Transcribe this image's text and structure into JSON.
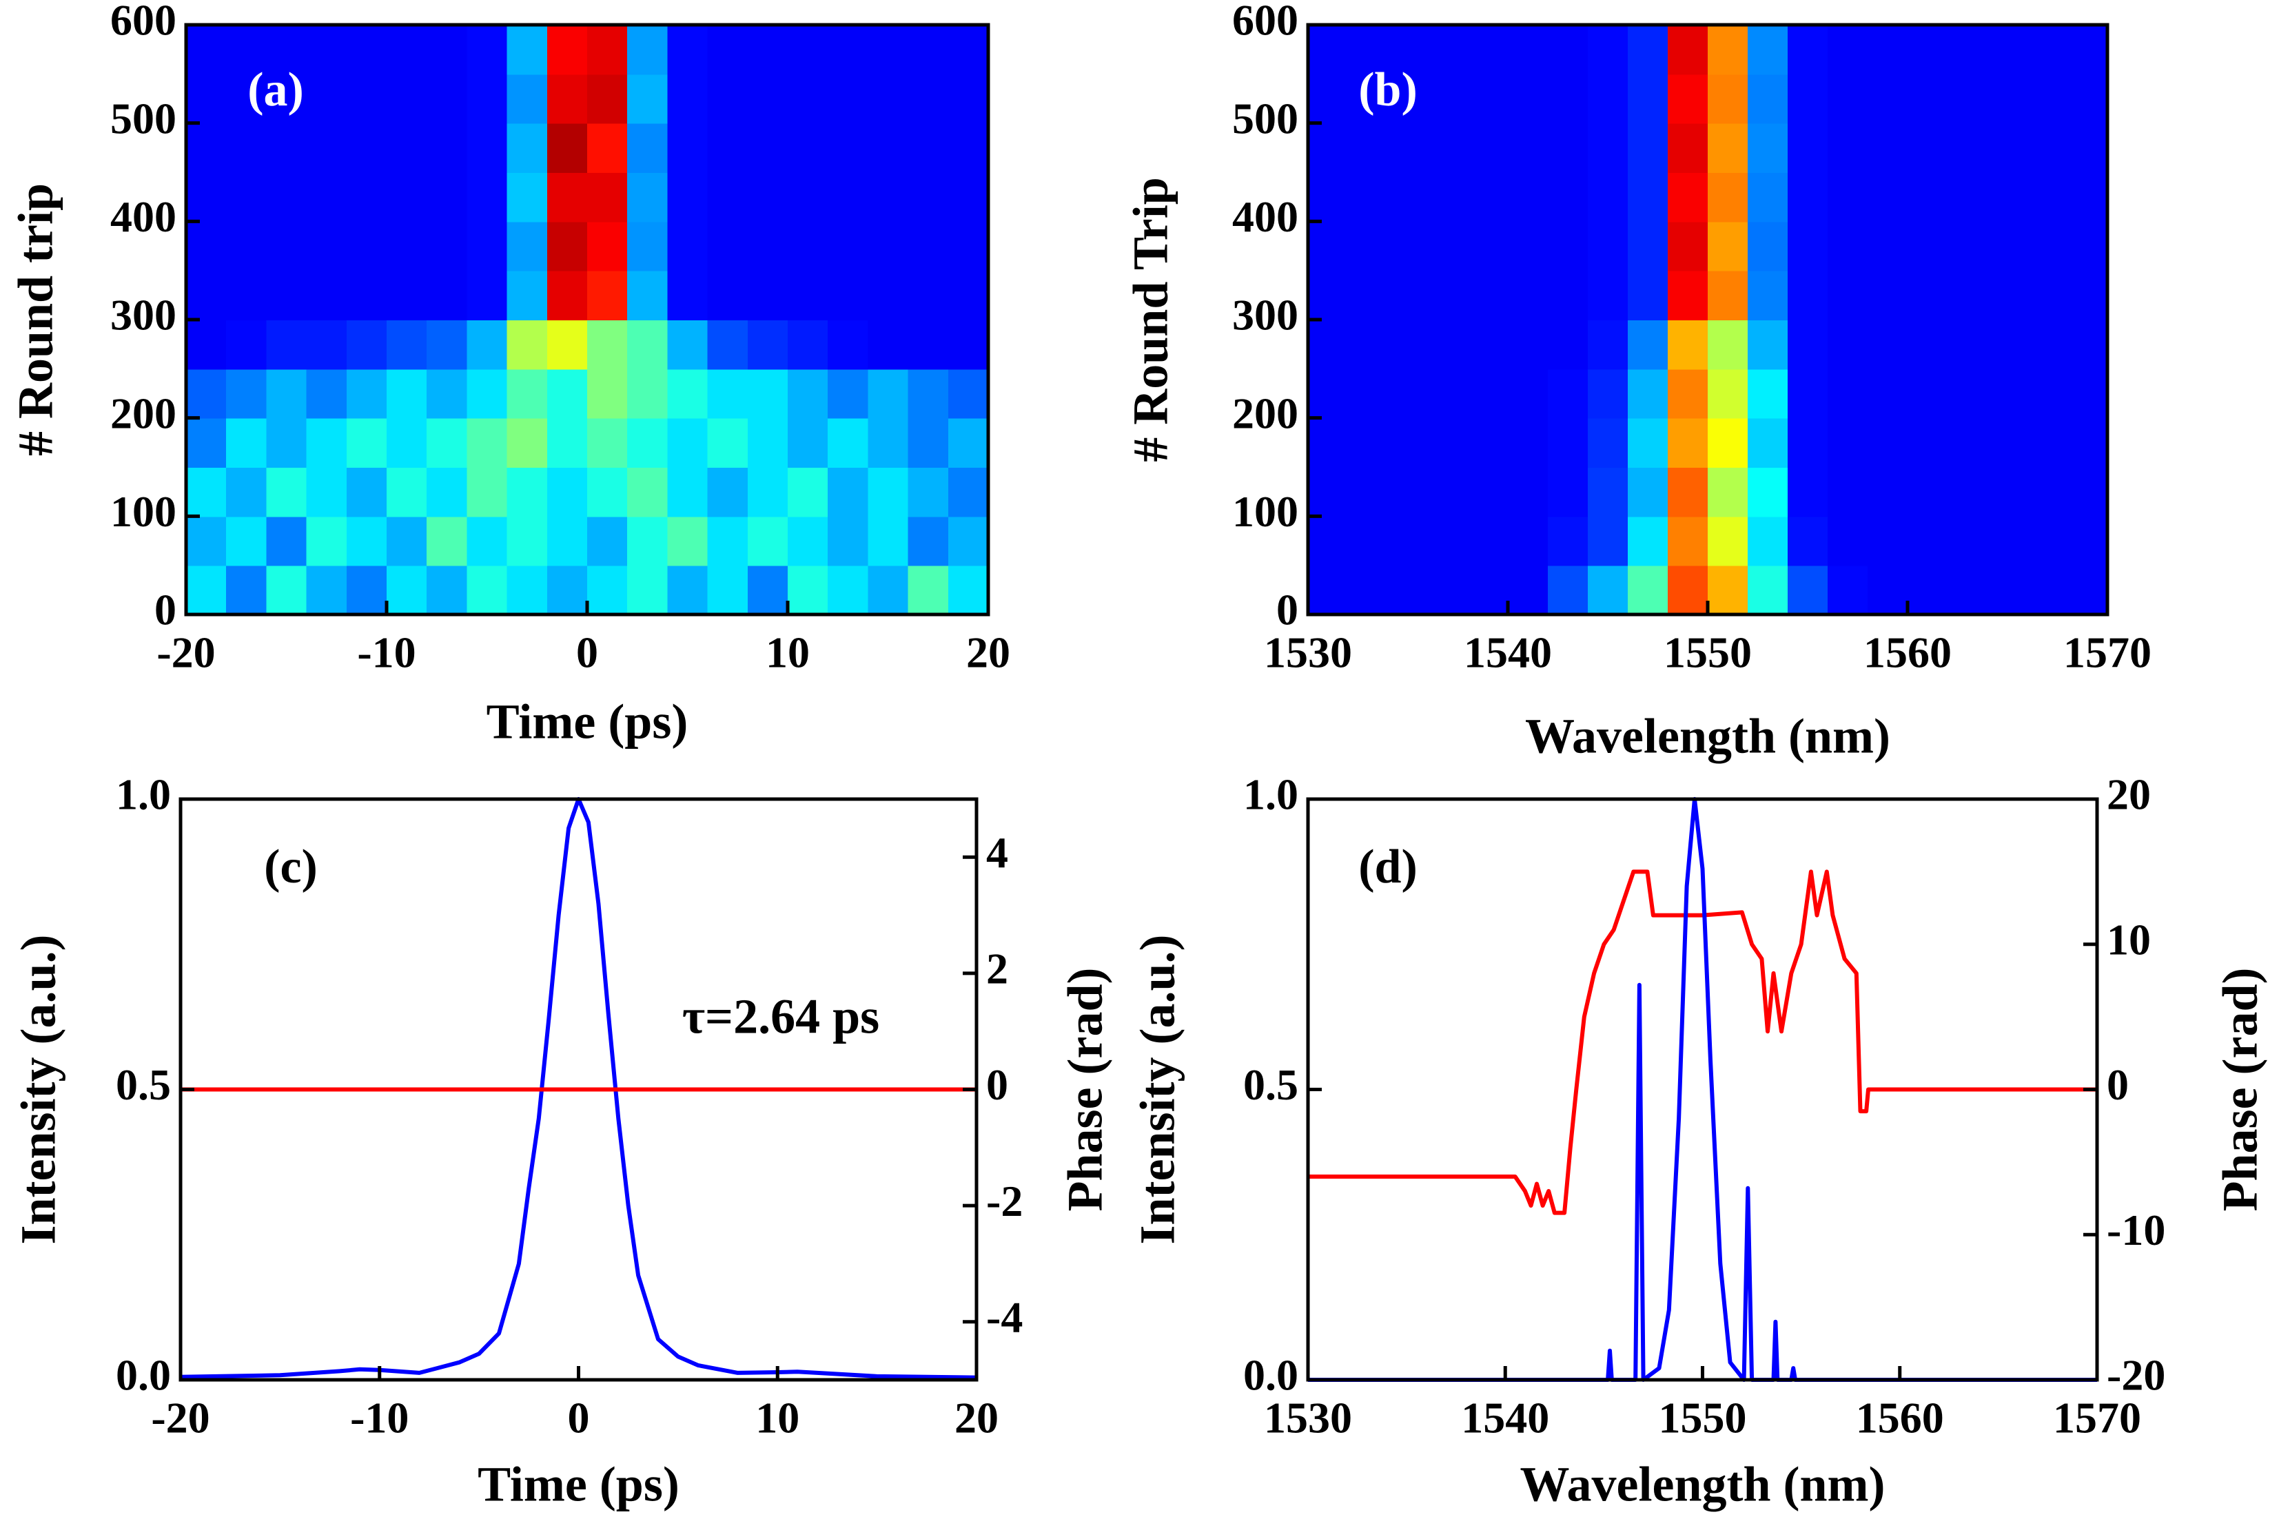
{
  "chart_data": [
    {
      "type": "heatmap",
      "label": "(a)",
      "label_color": "#ffffff",
      "xlabel": "Time (ps)",
      "ylabel": "# Round trip",
      "colormap": "jet",
      "zlim": [
        0,
        1
      ],
      "xlim": [
        -20,
        20
      ],
      "ylim": [
        0,
        600
      ],
      "xticks": [
        -20,
        -10,
        0,
        10,
        20
      ],
      "yticks": [
        0,
        100,
        200,
        300,
        400,
        500,
        600
      ],
      "x": [
        -19,
        -17,
        -15,
        -13,
        -11,
        -9,
        -7,
        -5,
        -3,
        -1,
        1,
        3,
        5,
        7,
        9,
        11,
        13,
        15,
        17,
        19
      ],
      "y": [
        25,
        75,
        125,
        175,
        225,
        275,
        325,
        375,
        425,
        475,
        525,
        575
      ],
      "z": [
        [
          0.35,
          0.25,
          0.4,
          0.3,
          0.25,
          0.35,
          0.3,
          0.4,
          0.35,
          0.3,
          0.35,
          0.4,
          0.3,
          0.35,
          0.25,
          0.4,
          0.35,
          0.3,
          0.45,
          0.35
        ],
        [
          0.3,
          0.35,
          0.25,
          0.4,
          0.35,
          0.3,
          0.45,
          0.35,
          0.4,
          0.35,
          0.3,
          0.4,
          0.45,
          0.35,
          0.4,
          0.35,
          0.3,
          0.35,
          0.25,
          0.3
        ],
        [
          0.35,
          0.3,
          0.4,
          0.35,
          0.3,
          0.4,
          0.35,
          0.45,
          0.4,
          0.35,
          0.4,
          0.45,
          0.35,
          0.3,
          0.35,
          0.4,
          0.3,
          0.35,
          0.3,
          0.25
        ],
        [
          0.25,
          0.35,
          0.3,
          0.35,
          0.4,
          0.35,
          0.4,
          0.45,
          0.5,
          0.4,
          0.45,
          0.4,
          0.35,
          0.4,
          0.35,
          0.3,
          0.35,
          0.3,
          0.25,
          0.3
        ],
        [
          0.22,
          0.25,
          0.3,
          0.25,
          0.3,
          0.35,
          0.3,
          0.35,
          0.45,
          0.4,
          0.5,
          0.45,
          0.4,
          0.35,
          0.35,
          0.3,
          0.25,
          0.3,
          0.25,
          0.22
        ],
        [
          0.12,
          0.13,
          0.15,
          0.15,
          0.17,
          0.2,
          0.22,
          0.3,
          0.55,
          0.6,
          0.5,
          0.45,
          0.3,
          0.2,
          0.17,
          0.15,
          0.13,
          0.12,
          0.12,
          0.12
        ],
        [
          0.12,
          0.12,
          0.12,
          0.12,
          0.12,
          0.12,
          0.12,
          0.13,
          0.3,
          0.9,
          0.85,
          0.3,
          0.13,
          0.12,
          0.12,
          0.12,
          0.12,
          0.12,
          0.12,
          0.12
        ],
        [
          0.12,
          0.12,
          0.12,
          0.12,
          0.12,
          0.12,
          0.12,
          0.13,
          0.28,
          0.93,
          0.88,
          0.27,
          0.13,
          0.12,
          0.12,
          0.12,
          0.12,
          0.12,
          0.12,
          0.12
        ],
        [
          0.12,
          0.12,
          0.12,
          0.12,
          0.12,
          0.12,
          0.12,
          0.13,
          0.32,
          0.9,
          0.9,
          0.28,
          0.13,
          0.12,
          0.12,
          0.12,
          0.12,
          0.12,
          0.12,
          0.12
        ],
        [
          0.12,
          0.12,
          0.12,
          0.12,
          0.12,
          0.12,
          0.12,
          0.13,
          0.3,
          0.95,
          0.86,
          0.26,
          0.13,
          0.12,
          0.12,
          0.12,
          0.12,
          0.12,
          0.12,
          0.12
        ],
        [
          0.12,
          0.12,
          0.12,
          0.12,
          0.12,
          0.12,
          0.12,
          0.13,
          0.27,
          0.9,
          0.92,
          0.3,
          0.13,
          0.12,
          0.12,
          0.12,
          0.12,
          0.12,
          0.12,
          0.12
        ],
        [
          0.12,
          0.12,
          0.12,
          0.12,
          0.12,
          0.12,
          0.12,
          0.13,
          0.3,
          0.88,
          0.9,
          0.28,
          0.13,
          0.12,
          0.12,
          0.12,
          0.12,
          0.12,
          0.12,
          0.12
        ]
      ]
    },
    {
      "type": "heatmap",
      "label": "(b)",
      "label_color": "#ffffff",
      "xlabel": "Wavelength (nm)",
      "ylabel": "# Round Trip",
      "colormap": "jet",
      "zlim": [
        0,
        1
      ],
      "xlim": [
        1530,
        1570
      ],
      "ylim": [
        0,
        600
      ],
      "xticks": [
        1530,
        1540,
        1550,
        1560,
        1570
      ],
      "yticks": [
        0,
        100,
        200,
        300,
        400,
        500,
        600
      ],
      "x": [
        1531,
        1533,
        1535,
        1537,
        1539,
        1541,
        1543,
        1545,
        1547,
        1549,
        1551,
        1553,
        1555,
        1557,
        1559,
        1561,
        1563,
        1565,
        1567,
        1569
      ],
      "y": [
        25,
        75,
        125,
        175,
        225,
        275,
        325,
        375,
        425,
        475,
        525,
        575
      ],
      "z": [
        [
          0.12,
          0.12,
          0.12,
          0.12,
          0.12,
          0.12,
          0.2,
          0.3,
          0.45,
          0.8,
          0.7,
          0.4,
          0.2,
          0.13,
          0.12,
          0.12,
          0.12,
          0.12,
          0.12,
          0.12
        ],
        [
          0.12,
          0.12,
          0.12,
          0.12,
          0.12,
          0.12,
          0.14,
          0.18,
          0.35,
          0.75,
          0.6,
          0.35,
          0.14,
          0.12,
          0.12,
          0.12,
          0.12,
          0.12,
          0.12,
          0.12
        ],
        [
          0.12,
          0.12,
          0.12,
          0.12,
          0.12,
          0.12,
          0.13,
          0.18,
          0.3,
          0.78,
          0.55,
          0.38,
          0.13,
          0.12,
          0.12,
          0.12,
          0.12,
          0.12,
          0.12,
          0.12
        ],
        [
          0.12,
          0.12,
          0.12,
          0.12,
          0.12,
          0.12,
          0.13,
          0.17,
          0.33,
          0.72,
          0.62,
          0.33,
          0.13,
          0.12,
          0.12,
          0.12,
          0.12,
          0.12,
          0.12,
          0.12
        ],
        [
          0.12,
          0.12,
          0.12,
          0.12,
          0.12,
          0.12,
          0.13,
          0.16,
          0.3,
          0.75,
          0.58,
          0.36,
          0.13,
          0.12,
          0.12,
          0.12,
          0.12,
          0.12,
          0.12,
          0.12
        ],
        [
          0.12,
          0.12,
          0.12,
          0.12,
          0.12,
          0.12,
          0.12,
          0.14,
          0.25,
          0.7,
          0.55,
          0.3,
          0.13,
          0.12,
          0.12,
          0.12,
          0.12,
          0.12,
          0.12,
          0.12
        ],
        [
          0.12,
          0.12,
          0.12,
          0.12,
          0.12,
          0.12,
          0.12,
          0.13,
          0.16,
          0.88,
          0.75,
          0.25,
          0.13,
          0.12,
          0.12,
          0.12,
          0.12,
          0.12,
          0.12,
          0.12
        ],
        [
          0.12,
          0.12,
          0.12,
          0.12,
          0.12,
          0.12,
          0.12,
          0.13,
          0.16,
          0.9,
          0.72,
          0.24,
          0.13,
          0.12,
          0.12,
          0.12,
          0.12,
          0.12,
          0.12,
          0.12
        ],
        [
          0.12,
          0.12,
          0.12,
          0.12,
          0.12,
          0.12,
          0.12,
          0.13,
          0.16,
          0.88,
          0.75,
          0.25,
          0.13,
          0.12,
          0.12,
          0.12,
          0.12,
          0.12,
          0.12,
          0.12
        ],
        [
          0.12,
          0.12,
          0.12,
          0.12,
          0.12,
          0.12,
          0.12,
          0.13,
          0.16,
          0.9,
          0.73,
          0.26,
          0.13,
          0.12,
          0.12,
          0.12,
          0.12,
          0.12,
          0.12,
          0.12
        ],
        [
          0.12,
          0.12,
          0.12,
          0.12,
          0.12,
          0.12,
          0.12,
          0.13,
          0.16,
          0.88,
          0.75,
          0.25,
          0.13,
          0.12,
          0.12,
          0.12,
          0.12,
          0.12,
          0.12,
          0.12
        ],
        [
          0.12,
          0.12,
          0.12,
          0.12,
          0.12,
          0.12,
          0.12,
          0.13,
          0.16,
          0.9,
          0.74,
          0.26,
          0.13,
          0.12,
          0.12,
          0.12,
          0.12,
          0.12,
          0.12,
          0.12
        ]
      ]
    },
    {
      "type": "line",
      "label": "(c)",
      "label_color": "#000000",
      "xlabel": "Time (ps)",
      "ylabel": "Intensity (a.u.)",
      "y2label": "Phase (rad)",
      "annotation": "τ=2.64 ps",
      "xlim": [
        -20,
        20
      ],
      "ylim": [
        0,
        1
      ],
      "y2lim": [
        -5,
        5
      ],
      "xticks": [
        -20,
        -10,
        0,
        10,
        20
      ],
      "yticks": [
        {
          "value": 0,
          "label": "0.0"
        },
        0.5,
        {
          "value": 1,
          "label": "1.0"
        }
      ],
      "y2ticks": [
        -4,
        -2,
        0,
        2,
        4
      ],
      "series": [
        {
          "color": "#0000ff",
          "x": [
            -20,
            -15,
            -12,
            -11,
            -10,
            -8,
            -6,
            -5,
            -4,
            -3,
            -2.5,
            -2,
            -1.5,
            -1,
            -0.5,
            0,
            0.5,
            1,
            1.5,
            2,
            2.5,
            3,
            4,
            5,
            6,
            8,
            10,
            11,
            12,
            15,
            20
          ],
          "values": [
            0.005,
            0.008,
            0.015,
            0.018,
            0.017,
            0.012,
            0.03,
            0.045,
            0.08,
            0.2,
            0.33,
            0.45,
            0.62,
            0.8,
            0.95,
            1.0,
            0.96,
            0.82,
            0.63,
            0.45,
            0.3,
            0.18,
            0.07,
            0.04,
            0.025,
            0.012,
            0.013,
            0.014,
            0.012,
            0.006,
            0.004
          ]
        },
        {
          "color": "#ff0000",
          "axis": "y2",
          "x": [
            -20,
            20
          ],
          "values": [
            0,
            0
          ]
        }
      ]
    },
    {
      "type": "line",
      "label": "(d)",
      "label_color": "#000000",
      "xlabel": "Wavelength (nm)",
      "ylabel": "Intensity (a.u.)",
      "y2label": "Phase (rad)",
      "xlim": [
        1530,
        1570
      ],
      "ylim": [
        0,
        1
      ],
      "y2lim": [
        -20,
        20
      ],
      "xticks": [
        1530,
        1540,
        1550,
        1560,
        1570
      ],
      "yticks": [
        {
          "value": 0,
          "label": "0.0"
        },
        0.5,
        {
          "value": 1,
          "label": "1.0"
        }
      ],
      "y2ticks": [
        -20,
        -10,
        0,
        10,
        20
      ],
      "series": [
        {
          "color": "#ff0000",
          "axis": "y2",
          "x": [
            1530,
            1540.5,
            1541,
            1541.3,
            1541.6,
            1541.9,
            1542.2,
            1542.5,
            1543,
            1543.3,
            1543.6,
            1544,
            1544.5,
            1545,
            1545.5,
            1546,
            1546.5,
            1546.8,
            1547.2,
            1547.5,
            1550,
            1552,
            1552.5,
            1553,
            1553.3,
            1553.6,
            1554,
            1554.5,
            1555,
            1555.5,
            1555.8,
            1556.3,
            1556.6,
            1557.2,
            1557.8,
            1558,
            1558.3,
            1558.4,
            1570
          ],
          "values": [
            -6,
            -6,
            -7,
            -8,
            -6.5,
            -8,
            -7,
            -8.5,
            -8.5,
            -4,
            0,
            5,
            8,
            10,
            11,
            13,
            15,
            15,
            15,
            12,
            12,
            12.2,
            10,
            9,
            4,
            8,
            4,
            8,
            10,
            15,
            12,
            15,
            12,
            9,
            8,
            -1.5,
            -1.5,
            0,
            0
          ]
        },
        {
          "color": "#0000ff",
          "x": [
            1530,
            1543,
            1545.2,
            1545.3,
            1545.4,
            1546.6,
            1546.8,
            1547,
            1547.8,
            1548.3,
            1548.8,
            1549.2,
            1549.6,
            1550,
            1550.4,
            1550.9,
            1551.4,
            1552.1,
            1552.3,
            1552.5,
            1553.6,
            1553.7,
            1553.8,
            1554.5,
            1554.6,
            1554.7,
            1570
          ],
          "values": [
            0,
            0,
            0,
            0.05,
            0,
            0,
            0.68,
            0,
            0.02,
            0.12,
            0.45,
            0.85,
            1.0,
            0.88,
            0.55,
            0.2,
            0.03,
            0,
            0.33,
            0,
            0,
            0.1,
            0,
            0,
            0.02,
            0,
            0
          ]
        }
      ]
    }
  ]
}
